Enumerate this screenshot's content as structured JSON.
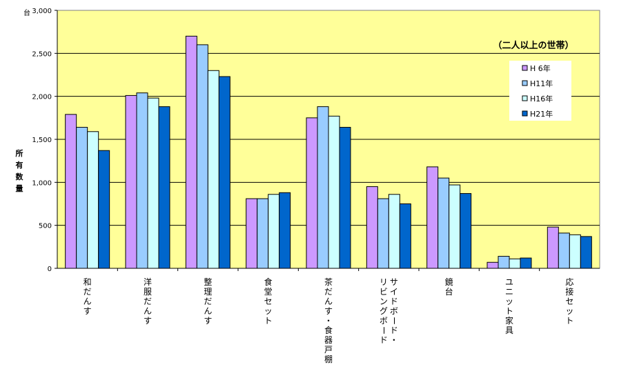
{
  "chart_data": {
    "type": "bar",
    "annotation": "（二人以上の世帯）",
    "ylabel": "所有数量",
    "yunit": "台",
    "ylim": [
      0,
      3000
    ],
    "yticks": [
      "0",
      "500",
      "1,000",
      "1,500",
      "2,000",
      "2,500",
      "3,000"
    ],
    "grid": true,
    "legend_position": "top-right",
    "plot_bg": "#ffff99",
    "categories": [
      "和だんす",
      "洋服だんす",
      "整理だんす",
      "食堂セット",
      "茶だんす・食器戸棚",
      "サイドボード・リビングボード",
      "鏡台",
      "ユニット家具",
      "応接セット"
    ],
    "category_lines": [
      [
        "和だんす"
      ],
      [
        "洋服だんす"
      ],
      [
        "整理だんす"
      ],
      [
        "食堂セット"
      ],
      [
        "茶だんす・食器戸棚"
      ],
      [
        "サイドボード・",
        "リビングボード"
      ],
      [
        "鏡台"
      ],
      [
        "ユニット家具"
      ],
      [
        "応接セット"
      ]
    ],
    "series": [
      {
        "name": "H 6年",
        "color": "#cc99ff",
        "values": [
          1790,
          2010,
          2700,
          810,
          1750,
          950,
          1180,
          70,
          480
        ]
      },
      {
        "name": "H11年",
        "color": "#99ccff",
        "values": [
          1640,
          2040,
          2600,
          810,
          1880,
          810,
          1050,
          140,
          410
        ]
      },
      {
        "name": "H16年",
        "color": "#ccffff",
        "values": [
          1590,
          1980,
          2300,
          860,
          1770,
          860,
          970,
          110,
          390
        ]
      },
      {
        "name": "H21年",
        "color": "#0066cc",
        "values": [
          1370,
          1880,
          2230,
          880,
          1640,
          750,
          870,
          120,
          370
        ]
      }
    ]
  }
}
